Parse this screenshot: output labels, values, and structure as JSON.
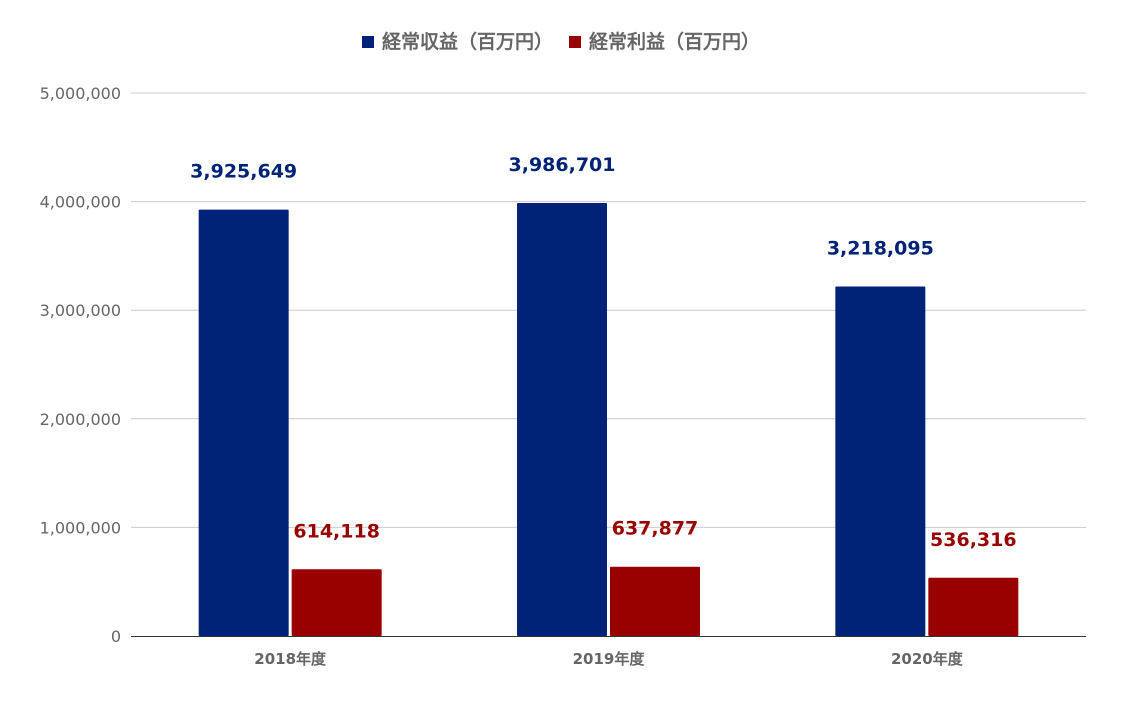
{
  "chart_data": {
    "type": "bar",
    "categories": [
      "2018年度",
      "2019年度",
      "2020年度"
    ],
    "series": [
      {
        "name": "経常収益（百万円）",
        "values": [
          3925649,
          3986701,
          3218095
        ],
        "labels": [
          "3,925,649",
          "3,986,701",
          "3,218,095"
        ],
        "color": "#002277"
      },
      {
        "name": "経常利益（百万円）",
        "values": [
          614118,
          637877,
          536316
        ],
        "labels": [
          "614,118",
          "637,877",
          "536,316"
        ],
        "color": "#990000"
      }
    ],
    "y_ticks": [
      0,
      1000000,
      2000000,
      3000000,
      4000000,
      5000000
    ],
    "y_tick_labels": [
      "0",
      "1,000,000",
      "2,000,000",
      "3,000,000",
      "4,000,000",
      "5,000,000"
    ],
    "ylim": [
      0,
      5000000
    ],
    "grid": true,
    "legend_position": "top"
  }
}
